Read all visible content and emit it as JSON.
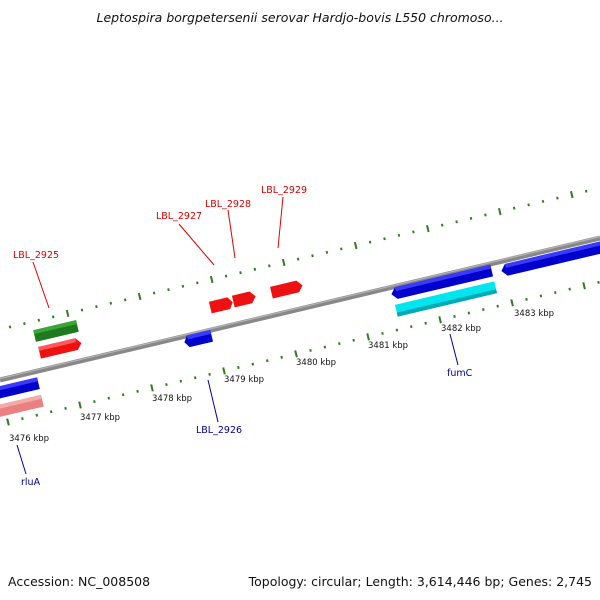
{
  "header": {
    "title": "Leptospira borgpetersenii serovar Hardjo-bovis L550 chromoso..."
  },
  "footer": {
    "accession": "Accession: NC_008508",
    "summary": "Topology: circular; Length: 3,614,446 bp; Genes: 2,745"
  },
  "colors": {
    "backbone": "#8c8c8c",
    "tick": "#2e7d1e",
    "label_forward": "#dd0000",
    "label_reverse": "#000099"
  },
  "kbp_ticks": [
    "3476 kbp",
    "3477 kbp",
    "3478 kbp",
    "3479 kbp",
    "3480 kbp",
    "3481 kbp",
    "3482 kbp",
    "3483 kbp"
  ],
  "genes": [
    {
      "color": "#ef4a4a",
      "label": "LBL_2925"
    },
    {
      "color": "#ef4a4a",
      "label": "LBL_2926"
    },
    {
      "color": "#ef4a4a",
      "label": "LBL_2927"
    },
    {
      "color": "#ef4a4a",
      "label": "LBL_2928"
    },
    {
      "color": "#ef4a4a",
      "label": "LBL_2929"
    },
    {
      "color": "#0000cc",
      "label": "rluA"
    },
    {
      "color": "#0000cc",
      "label": "fumC"
    }
  ]
}
